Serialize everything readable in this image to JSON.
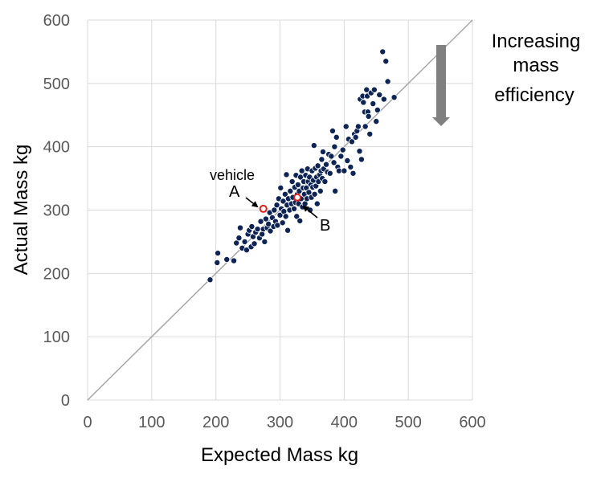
{
  "chart_data": {
    "type": "scatter",
    "xlabel": "Expected Mass kg",
    "ylabel": "Actual Mass kg",
    "xlim": [
      0,
      600
    ],
    "ylim": [
      0,
      600
    ],
    "x_ticks": [
      "0",
      "100",
      "200",
      "300",
      "400",
      "500",
      "600"
    ],
    "y_ticks": [
      "0",
      "100",
      "200",
      "300",
      "400",
      "500",
      "600"
    ],
    "grid": true,
    "reference_line": {
      "x": [
        0,
        600
      ],
      "y": [
        0,
        600
      ]
    },
    "marker_color": "#0d2454",
    "highlight_color": "#e0201b",
    "axis_color": "#d9d9d9",
    "line_color": "#a6a6a6",
    "arrow_color": "#808080",
    "series": [
      {
        "points": [
          [
            191,
            190
          ],
          [
            202,
            217
          ],
          [
            203,
            232
          ],
          [
            217,
            222
          ],
          [
            228,
            220
          ],
          [
            232,
            248
          ],
          [
            236,
            256
          ],
          [
            238,
            272
          ],
          [
            241,
            240
          ],
          [
            245,
            250
          ],
          [
            248,
            237
          ],
          [
            250,
            262
          ],
          [
            252,
            268
          ],
          [
            255,
            242
          ],
          [
            256,
            274
          ],
          [
            258,
            258
          ],
          [
            260,
            247
          ],
          [
            262,
            265
          ],
          [
            265,
            270
          ],
          [
            268,
            256
          ],
          [
            270,
            282
          ],
          [
            272,
            262
          ],
          [
            274,
            270
          ],
          [
            276,
            250
          ],
          [
            278,
            286
          ],
          [
            280,
            272
          ],
          [
            282,
            278
          ],
          [
            284,
            296
          ],
          [
            285,
            267
          ],
          [
            288,
            288
          ],
          [
            290,
            274
          ],
          [
            291,
            300
          ],
          [
            293,
            282
          ],
          [
            295,
            308
          ],
          [
            296,
            276
          ],
          [
            298,
            318
          ],
          [
            300,
            292
          ],
          [
            301,
            335
          ],
          [
            302,
            302
          ],
          [
            304,
            280
          ],
          [
            305,
            314
          ],
          [
            306,
            298
          ],
          [
            308,
            325
          ],
          [
            309,
            290
          ],
          [
            310,
            356
          ],
          [
            311,
            308
          ],
          [
            312,
            268
          ],
          [
            313,
            318
          ],
          [
            315,
            300
          ],
          [
            316,
            330
          ],
          [
            318,
            310
          ],
          [
            319,
            345
          ],
          [
            320,
            320
          ],
          [
            322,
            302
          ],
          [
            323,
            336
          ],
          [
            324,
            312
          ],
          [
            325,
            355
          ],
          [
            326,
            290
          ],
          [
            327,
            325
          ],
          [
            328,
            340
          ],
          [
            329,
            310
          ],
          [
            330,
            330
          ],
          [
            331,
            283
          ],
          [
            332,
            352
          ],
          [
            333,
            318
          ],
          [
            334,
            362
          ],
          [
            335,
            305
          ],
          [
            336,
            335
          ],
          [
            337,
            345
          ],
          [
            338,
            325
          ],
          [
            339,
            310
          ],
          [
            340,
            355
          ],
          [
            341,
            335
          ],
          [
            342,
            318
          ],
          [
            343,
            365
          ],
          [
            344,
            345
          ],
          [
            345,
            328
          ],
          [
            346,
            352
          ],
          [
            347,
            300
          ],
          [
            348,
            340
          ],
          [
            349,
            320
          ],
          [
            350,
            362
          ],
          [
            351,
            336
          ],
          [
            352,
            347
          ],
          [
            353,
            402
          ],
          [
            354,
            325
          ],
          [
            355,
            366
          ],
          [
            356,
            338
          ],
          [
            357,
            352
          ],
          [
            358,
            310
          ],
          [
            359,
            370
          ],
          [
            360,
            345
          ],
          [
            362,
            356
          ],
          [
            363,
            330
          ],
          [
            364,
            362
          ],
          [
            365,
            380
          ],
          [
            366,
            350
          ],
          [
            367,
            392
          ],
          [
            368,
            365
          ],
          [
            370,
            345
          ],
          [
            372,
            372
          ],
          [
            374,
            360
          ],
          [
            376,
            388
          ],
          [
            378,
            358
          ],
          [
            380,
            385
          ],
          [
            382,
            425
          ],
          [
            384,
            375
          ],
          [
            385,
            400
          ],
          [
            386,
            330
          ],
          [
            388,
            415
          ],
          [
            390,
            368
          ],
          [
            392,
            362
          ],
          [
            395,
            385
          ],
          [
            398,
            395
          ],
          [
            400,
            362
          ],
          [
            403,
            432
          ],
          [
            405,
            378
          ],
          [
            407,
            412
          ],
          [
            410,
            368
          ],
          [
            412,
            408
          ],
          [
            414,
            358
          ],
          [
            416,
            420
          ],
          [
            418,
            415
          ],
          [
            420,
            425
          ],
          [
            422,
            432
          ],
          [
            424,
            393
          ],
          [
            425,
            475
          ],
          [
            427,
            380
          ],
          [
            429,
            480
          ],
          [
            430,
            470
          ],
          [
            432,
            455
          ],
          [
            433,
            432
          ],
          [
            435,
            490
          ],
          [
            436,
            480
          ],
          [
            437,
            455
          ],
          [
            438,
            448
          ],
          [
            440,
            420
          ],
          [
            442,
            485
          ],
          [
            445,
            468
          ],
          [
            447,
            490
          ],
          [
            450,
            440
          ],
          [
            452,
            458
          ],
          [
            455,
            482
          ],
          [
            460,
            550
          ],
          [
            462,
            475
          ],
          [
            465,
            535
          ],
          [
            468,
            503
          ],
          [
            478,
            478
          ]
        ]
      }
    ],
    "highlighted": [
      {
        "label": "A",
        "x": 274,
        "y": 302
      },
      {
        "label": "B",
        "x": 327,
        "y": 320
      }
    ],
    "annotations": {
      "vehicle": "vehicle",
      "a": "A",
      "b": "B",
      "side_line1": "Increasing",
      "side_line2": "mass",
      "side_line3": "efficiency"
    }
  }
}
